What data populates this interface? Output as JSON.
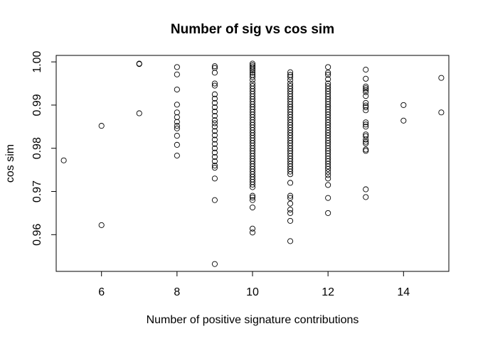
{
  "chart_data": {
    "type": "scatter",
    "title": "Number of sig vs cos sim",
    "xlabel": "Number of positive signature contributions",
    "ylabel": "cos sim",
    "xlim": [
      4.8,
      15.2
    ],
    "ylim": [
      0.9515,
      1.0015
    ],
    "grid": false,
    "legend": "none",
    "x_ticks": [
      6,
      8,
      10,
      12,
      14
    ],
    "y_ticks": [
      0.96,
      0.97,
      0.98,
      0.99,
      1.0
    ],
    "x_tick_labels": [
      "6",
      "8",
      "10",
      "12",
      "14"
    ],
    "y_tick_labels": [
      "0.96",
      "0.97",
      "0.98",
      "0.99",
      "1.00"
    ],
    "marker_color": "#000000",
    "points": [
      {
        "x": 5,
        "y": [
          0.9772
        ]
      },
      {
        "x": 6,
        "y": [
          0.9852,
          0.9622
        ]
      },
      {
        "x": 7,
        "y": [
          0.9996,
          0.9995,
          0.9881
        ]
      },
      {
        "x": 8,
        "y": [
          0.9988,
          0.9971,
          0.9936,
          0.9901,
          0.9883,
          0.9872,
          0.9861,
          0.9852,
          0.9846,
          0.9829,
          0.9808,
          0.9783
        ]
      },
      {
        "x": 9,
        "y": [
          0.999,
          0.9986,
          0.9975,
          0.995,
          0.9945,
          0.9925,
          0.9915,
          0.9905,
          0.9895,
          0.9885,
          0.9875,
          0.9865,
          0.9858,
          0.985,
          0.984,
          0.983,
          0.982,
          0.981,
          0.98,
          0.979,
          0.978,
          0.977,
          0.976,
          0.9755,
          0.973,
          0.968,
          0.9532
        ]
      },
      {
        "x": 10,
        "y": [
          0.9996,
          0.9992,
          0.9988,
          0.9984,
          0.998,
          0.9975,
          0.997,
          0.9965,
          0.9958,
          0.995,
          0.9944,
          0.9938,
          0.9932,
          0.9926,
          0.992,
          0.9914,
          0.9908,
          0.9902,
          0.9896,
          0.989,
          0.9884,
          0.9878,
          0.9872,
          0.9866,
          0.986,
          0.9854,
          0.9848,
          0.9842,
          0.9836,
          0.983,
          0.9824,
          0.9818,
          0.9812,
          0.9806,
          0.98,
          0.9794,
          0.9788,
          0.9782,
          0.9776,
          0.977,
          0.9764,
          0.9758,
          0.9752,
          0.9746,
          0.974,
          0.9734,
          0.9728,
          0.9722,
          0.9716,
          0.971,
          0.969,
          0.9686,
          0.968,
          0.9663,
          0.9614,
          0.9605
        ]
      },
      {
        "x": 11,
        "y": [
          0.9976,
          0.997,
          0.9965,
          0.9958,
          0.995,
          0.9944,
          0.9938,
          0.9932,
          0.9926,
          0.992,
          0.9914,
          0.9908,
          0.9902,
          0.9896,
          0.989,
          0.9884,
          0.9878,
          0.9872,
          0.9866,
          0.986,
          0.9854,
          0.9848,
          0.9842,
          0.9836,
          0.983,
          0.9824,
          0.9818,
          0.9812,
          0.9806,
          0.98,
          0.9794,
          0.9788,
          0.9782,
          0.9776,
          0.977,
          0.9764,
          0.9758,
          0.9752,
          0.9746,
          0.974,
          0.972,
          0.969,
          0.9685,
          0.9672,
          0.9658,
          0.965,
          0.9632,
          0.9585
        ]
      },
      {
        "x": 12,
        "y": [
          0.9988,
          0.9975,
          0.997,
          0.996,
          0.995,
          0.9944,
          0.9938,
          0.9932,
          0.9926,
          0.992,
          0.9914,
          0.9908,
          0.9902,
          0.9896,
          0.989,
          0.9884,
          0.9878,
          0.9872,
          0.9866,
          0.986,
          0.9854,
          0.9848,
          0.9842,
          0.9836,
          0.983,
          0.9824,
          0.9818,
          0.9812,
          0.9806,
          0.98,
          0.9794,
          0.9788,
          0.9782,
          0.9776,
          0.977,
          0.9764,
          0.9758,
          0.9752,
          0.9745,
          0.9738,
          0.973,
          0.9715,
          0.9685,
          0.965
        ]
      },
      {
        "x": 13,
        "y": [
          0.9982,
          0.9961,
          0.9943,
          0.9939,
          0.9935,
          0.993,
          0.9921,
          0.9905,
          0.9899,
          0.9895,
          0.9888,
          0.986,
          0.9855,
          0.985,
          0.9832,
          0.9828,
          0.982,
          0.9815,
          0.9811,
          0.9797,
          0.9794,
          0.9705,
          0.9687
        ]
      },
      {
        "x": 14,
        "y": [
          0.99,
          0.9864
        ]
      },
      {
        "x": 15,
        "y": [
          0.9963,
          0.9883
        ]
      }
    ]
  }
}
